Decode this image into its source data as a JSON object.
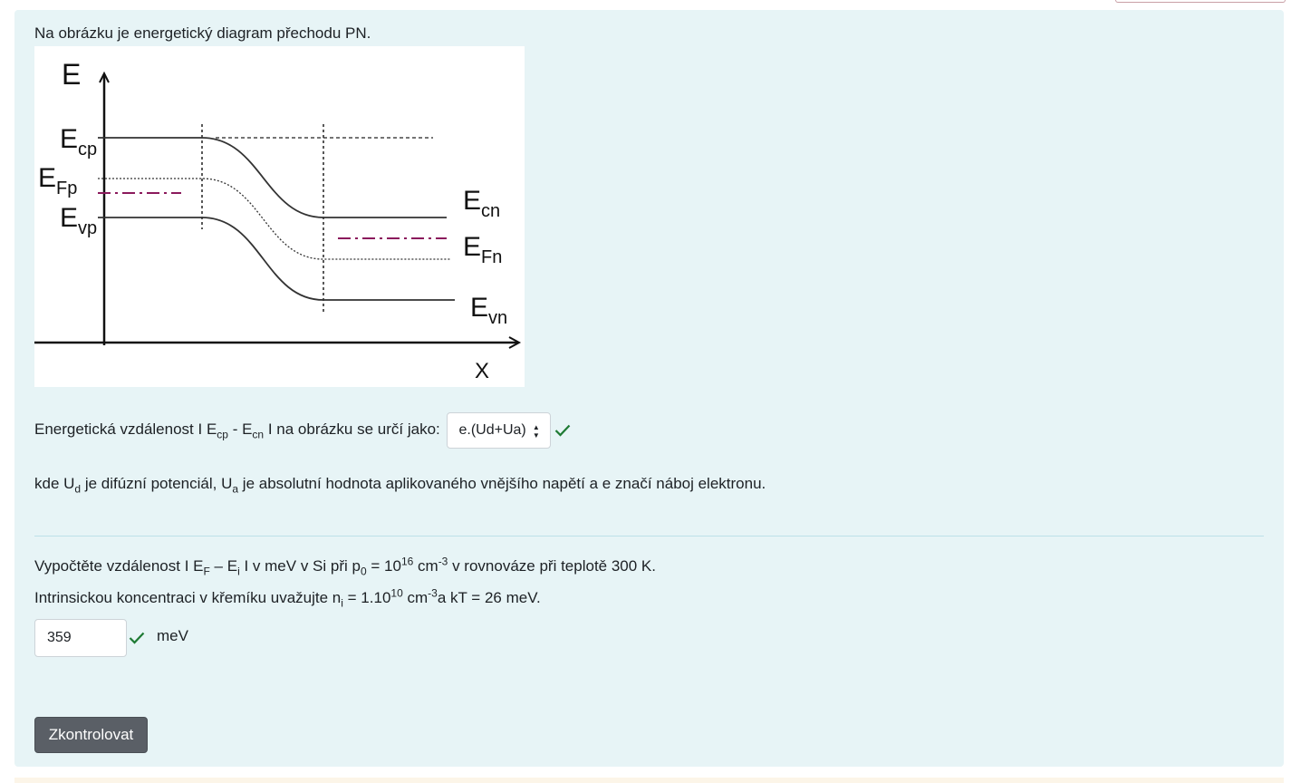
{
  "question1": {
    "intro": "Na obrázku je energetický diagram přechodu PN.",
    "diagram": {
      "axis_y": "E",
      "axis_x": "X",
      "labels": {
        "ecp_base": "E",
        "ecp_sub": "cp",
        "efp_base": "E",
        "efp_sub": "Fp",
        "evp_base": "E",
        "evp_sub": "vp",
        "ecn_base": "E",
        "ecn_sub": "cn",
        "efn_base": "E",
        "efn_sub": "Fn",
        "evn_base": "E",
        "evn_sub": "vn"
      }
    },
    "prompt_pre": "Energetická vzdálenost  I E",
    "prompt_sub1": "cp",
    "prompt_mid": " - E",
    "prompt_sub2": "cn",
    "prompt_post": " I na obrázku se určí jako:",
    "select_value": "e.(Ud+Ua)",
    "note_pre": "kde U",
    "note_sub1": "d",
    "note_mid1": " je difúzní potenciál, U",
    "note_sub2": "a",
    "note_post": " je absolutní hodnota aplikovaného vnějšího napětí a  e  značí náboj elektronu."
  },
  "question2": {
    "l1_a": "Vypočtěte vzdálenost  I E",
    "l1_sub1": "F",
    "l1_b": " – E",
    "l1_sub2": "i",
    "l1_c": " I  v meV v Si při p",
    "l1_sub3": "0",
    "l1_d": " = 10",
    "l1_sup1": "16",
    "l1_e": " cm",
    "l1_sup2": "-3",
    "l1_f": " v rovnováze při teplotě 300 K.",
    "l2_a": "Intrinsickou koncentraci v křemíku uvažujte n",
    "l2_sub1": "i",
    "l2_b": " = 1.10",
    "l2_sup1": "10",
    "l2_c": " cm",
    "l2_sup2": "-3",
    "l2_d": "a kT = 26 meV.",
    "answer_value": "359",
    "unit": "meV"
  },
  "check_button": "Zkontrolovat",
  "colors": {
    "panel_bg": "#e7f4f6",
    "correct_green": "#1e7a33",
    "button_bg": "#5a5f66",
    "fermi_dashdot": "#8b1a5c"
  }
}
